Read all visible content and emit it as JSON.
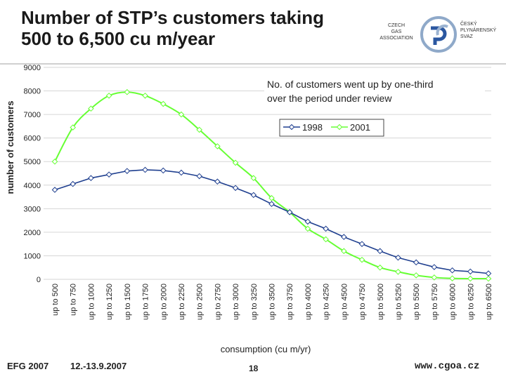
{
  "slide": {
    "title_line1": "Number of STP’s customers taking",
    "title_line2": "500 to 6,500 cu m/year",
    "logo_left": [
      "CZECH",
      "GAS",
      "ASSOCIATION"
    ],
    "logo_right": [
      "ČESKÝ",
      "PLYNÁRENSKÝ",
      "SVAZ"
    ],
    "footer_left": "EFG 2007",
    "footer_date": "12.-13.9.2007",
    "footer_page": "18",
    "footer_url": "www.cgoa.cz"
  },
  "colors": {
    "series1998": "#1f3f8f",
    "series2001": "#66ff33"
  },
  "chart_data": {
    "type": "line",
    "title": "",
    "xlabel": "consumption (cu m/yr)",
    "ylabel": "number of customers",
    "ylim": [
      0,
      9000
    ],
    "yticks": [
      0,
      1000,
      2000,
      3000,
      4000,
      5000,
      6000,
      7000,
      8000,
      9000
    ],
    "categories": [
      "up to 500",
      "up to 750",
      "up to 1000",
      "up to 1250",
      "up to 1500",
      "up to 1750",
      "up to 2000",
      "up to 2250",
      "up to 2500",
      "up to 2750",
      "up to 3000",
      "up to 3250",
      "up to 3500",
      "up to 3750",
      "up to 4000",
      "up to 4250",
      "up to 4500",
      "up to 4750",
      "up to 5000",
      "up to 5250",
      "up to 5500",
      "up to 5750",
      "up to 6000",
      "up to 6250",
      "up to 6500"
    ],
    "series": [
      {
        "name": "1998",
        "values": [
          3800,
          4050,
          4300,
          4450,
          4600,
          4650,
          4620,
          4530,
          4380,
          4150,
          3880,
          3580,
          3200,
          2850,
          2450,
          2150,
          1800,
          1500,
          1200,
          920,
          720,
          520,
          380,
          330,
          250
        ]
      },
      {
        "name": "2001",
        "values": [
          5000,
          6450,
          7250,
          7800,
          7950,
          7800,
          7450,
          7000,
          6350,
          5650,
          4950,
          4300,
          3450,
          2850,
          2150,
          1700,
          1200,
          830,
          500,
          320,
          170,
          80,
          40,
          30,
          30
        ]
      }
    ],
    "annotation": "No. of customers went up by one-third over the period under review",
    "annotation_lines": [
      "No. of customers went up by one-third",
      "over the period under review"
    ],
    "legend_position": "top-right"
  }
}
